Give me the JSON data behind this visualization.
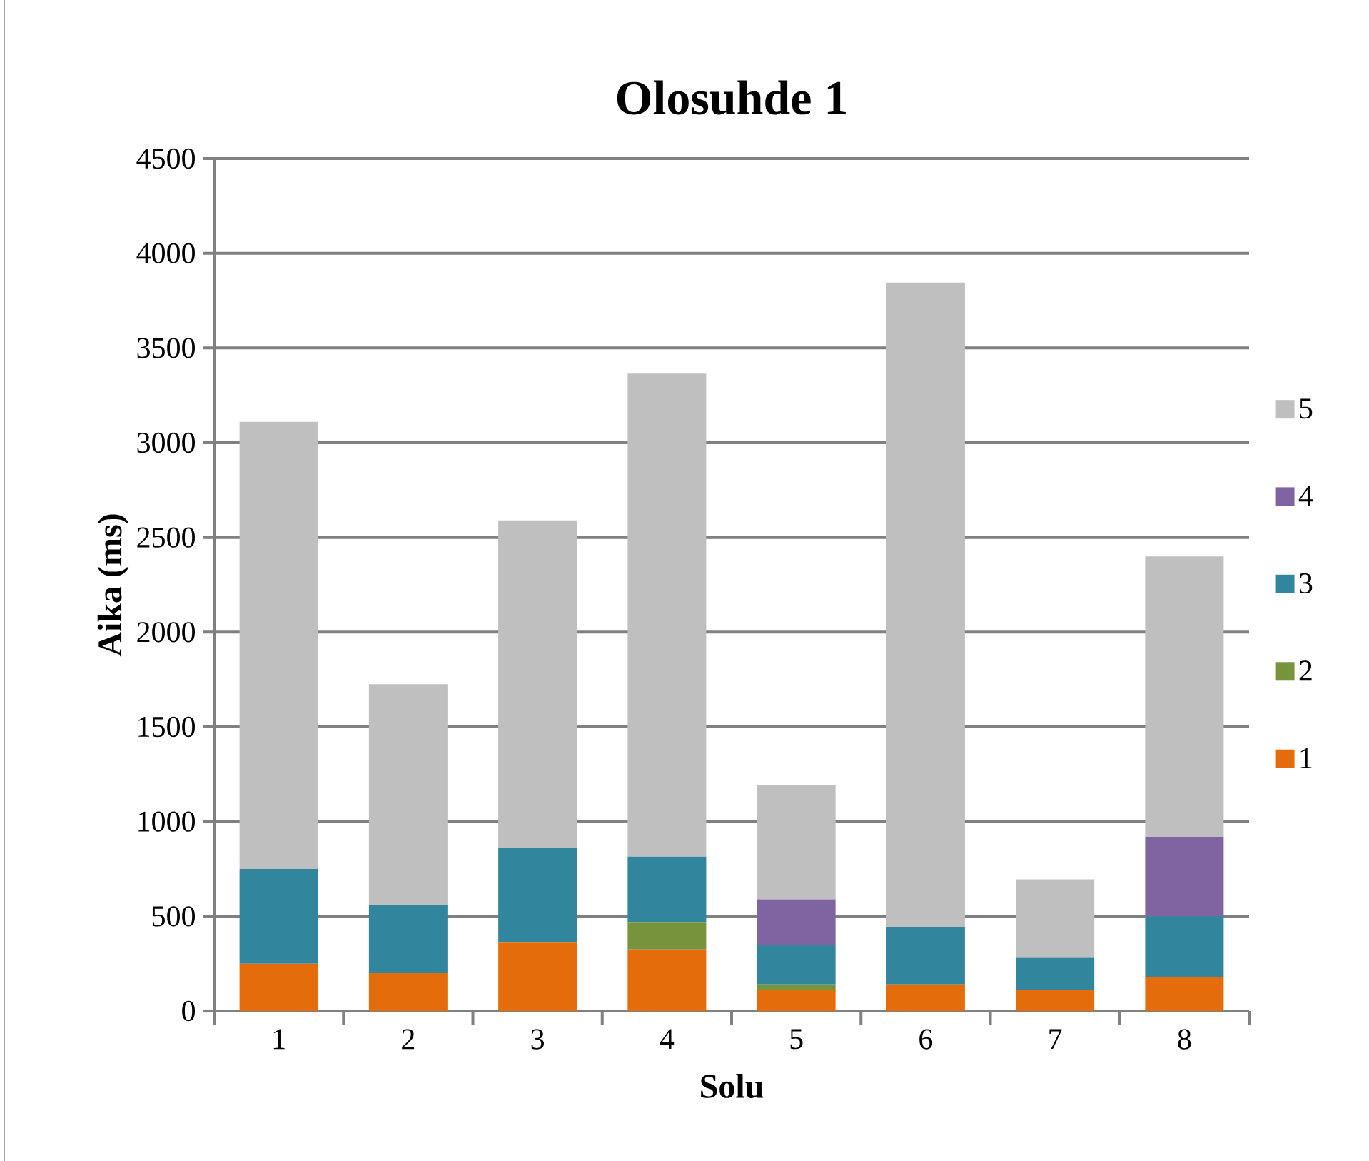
{
  "chart_data": {
    "type": "bar",
    "stacked": true,
    "title": "Olosuhde 1",
    "xlabel": "Solu",
    "ylabel": "Aika (ms)",
    "categories": [
      "1",
      "2",
      "3",
      "4",
      "5",
      "6",
      "7",
      "8"
    ],
    "series": [
      {
        "name": "1",
        "color": "#e46c0a",
        "values": [
          250,
          200,
          365,
          325,
          110,
          140,
          110,
          180
        ]
      },
      {
        "name": "2",
        "color": "#77933c",
        "values": [
          0,
          0,
          0,
          145,
          30,
          0,
          0,
          0
        ]
      },
      {
        "name": "3",
        "color": "#31859c",
        "values": [
          500,
          360,
          495,
          345,
          210,
          305,
          175,
          320
        ]
      },
      {
        "name": "4",
        "color": "#8064a2",
        "values": [
          0,
          0,
          0,
          0,
          240,
          0,
          0,
          420
        ]
      },
      {
        "name": "5",
        "color": "#bfbfbf",
        "values": [
          2360,
          1165,
          1730,
          2550,
          605,
          3400,
          410,
          1480
        ]
      }
    ],
    "ylim": [
      0,
      4500
    ],
    "yticks": [
      0,
      500,
      1000,
      1500,
      2000,
      2500,
      3000,
      3500,
      4000,
      4500
    ],
    "grid": "y",
    "legend": "right"
  }
}
